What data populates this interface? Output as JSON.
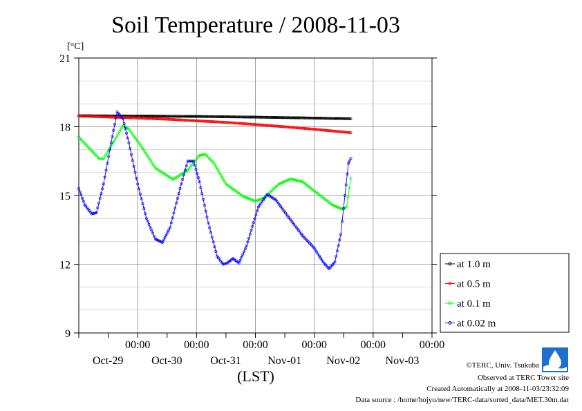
{
  "chart_data": {
    "type": "line",
    "title": "Soil Temperature / 2008-11-03",
    "ylabel_unit": "[°C]",
    "xlabel": "(LST)",
    "ylim": [
      9,
      21
    ],
    "y_ticks": [
      "9",
      "12",
      "15",
      "18",
      "21"
    ],
    "xlim_days": [
      -1.0,
      5.0
    ],
    "x_ticks": [
      {
        "time": "00:00",
        "date": "Oct-29"
      },
      {
        "time": "00:00",
        "date": "Oct-30"
      },
      {
        "time": "00:00",
        "date": "Oct-31"
      },
      {
        "time": "00:00",
        "date": "Nov-01"
      },
      {
        "time": "00:00",
        "date": "Nov-02"
      },
      {
        "time": "00:00",
        "date": "Nov-03"
      }
    ],
    "grid": true,
    "legend": "right",
    "series": [
      {
        "name": "at 1.0 m",
        "color": "#000000",
        "points": [
          [
            -1.0,
            18.48
          ],
          [
            0.0,
            18.47
          ],
          [
            1.0,
            18.45
          ],
          [
            2.0,
            18.42
          ],
          [
            3.0,
            18.38
          ],
          [
            3.62,
            18.35
          ]
        ]
      },
      {
        "name": "at 0.5 m",
        "color": "#ff0000",
        "points": [
          [
            -1.0,
            18.47
          ],
          [
            0.0,
            18.38
          ],
          [
            0.5,
            18.33
          ],
          [
            1.0,
            18.26
          ],
          [
            1.5,
            18.19
          ],
          [
            2.0,
            18.1
          ],
          [
            2.5,
            18.0
          ],
          [
            3.0,
            17.89
          ],
          [
            3.62,
            17.74
          ]
        ]
      },
      {
        "name": "at 0.1 m",
        "color": "#00ff00",
        "points": [
          [
            -1.0,
            17.55
          ],
          [
            -0.65,
            16.6
          ],
          [
            -0.58,
            16.6
          ],
          [
            -0.35,
            17.6
          ],
          [
            -0.25,
            18.05
          ],
          [
            -0.15,
            17.9
          ],
          [
            0.1,
            17.0
          ],
          [
            0.3,
            16.2
          ],
          [
            0.6,
            15.7
          ],
          [
            0.85,
            16.1
          ],
          [
            1.05,
            16.75
          ],
          [
            1.15,
            16.8
          ],
          [
            1.3,
            16.4
          ],
          [
            1.5,
            15.5
          ],
          [
            1.8,
            14.95
          ],
          [
            2.0,
            14.75
          ],
          [
            2.15,
            14.9
          ],
          [
            2.4,
            15.5
          ],
          [
            2.6,
            15.72
          ],
          [
            2.8,
            15.6
          ],
          [
            3.05,
            15.1
          ],
          [
            3.3,
            14.6
          ],
          [
            3.48,
            14.4
          ],
          [
            3.55,
            14.5
          ],
          [
            3.62,
            15.75
          ]
        ]
      },
      {
        "name": "at 0.02 m",
        "color": "#0000ff",
        "points": [
          [
            -1.0,
            15.3
          ],
          [
            -0.9,
            14.6
          ],
          [
            -0.78,
            14.2
          ],
          [
            -0.7,
            14.25
          ],
          [
            -0.58,
            15.5
          ],
          [
            -0.45,
            17.3
          ],
          [
            -0.35,
            18.65
          ],
          [
            -0.25,
            18.35
          ],
          [
            -0.15,
            17.3
          ],
          [
            0.0,
            15.5
          ],
          [
            0.15,
            14.0
          ],
          [
            0.3,
            13.1
          ],
          [
            0.42,
            12.95
          ],
          [
            0.55,
            13.6
          ],
          [
            0.72,
            15.3
          ],
          [
            0.85,
            16.5
          ],
          [
            0.95,
            16.5
          ],
          [
            1.05,
            15.6
          ],
          [
            1.2,
            13.8
          ],
          [
            1.35,
            12.35
          ],
          [
            1.45,
            12.0
          ],
          [
            1.52,
            12.05
          ],
          [
            1.62,
            12.25
          ],
          [
            1.72,
            12.05
          ],
          [
            1.85,
            12.8
          ],
          [
            2.05,
            14.5
          ],
          [
            2.2,
            15.05
          ],
          [
            2.35,
            14.8
          ],
          [
            2.55,
            14.1
          ],
          [
            2.8,
            13.25
          ],
          [
            3.0,
            12.7
          ],
          [
            3.15,
            12.1
          ],
          [
            3.25,
            11.8
          ],
          [
            3.35,
            12.1
          ],
          [
            3.45,
            13.3
          ],
          [
            3.52,
            15.0
          ],
          [
            3.58,
            16.4
          ],
          [
            3.62,
            16.62
          ]
        ]
      }
    ]
  },
  "footer": {
    "copyright": "©TERC, Univ. Tsukuba",
    "observed": "Observed at TERC Tower site",
    "created": "Created Automatically at 2008-11-03/23:32:09",
    "source": "Data source : /home/hojyo/new/TERC-data/sorted_data/MET.30m.dat"
  }
}
